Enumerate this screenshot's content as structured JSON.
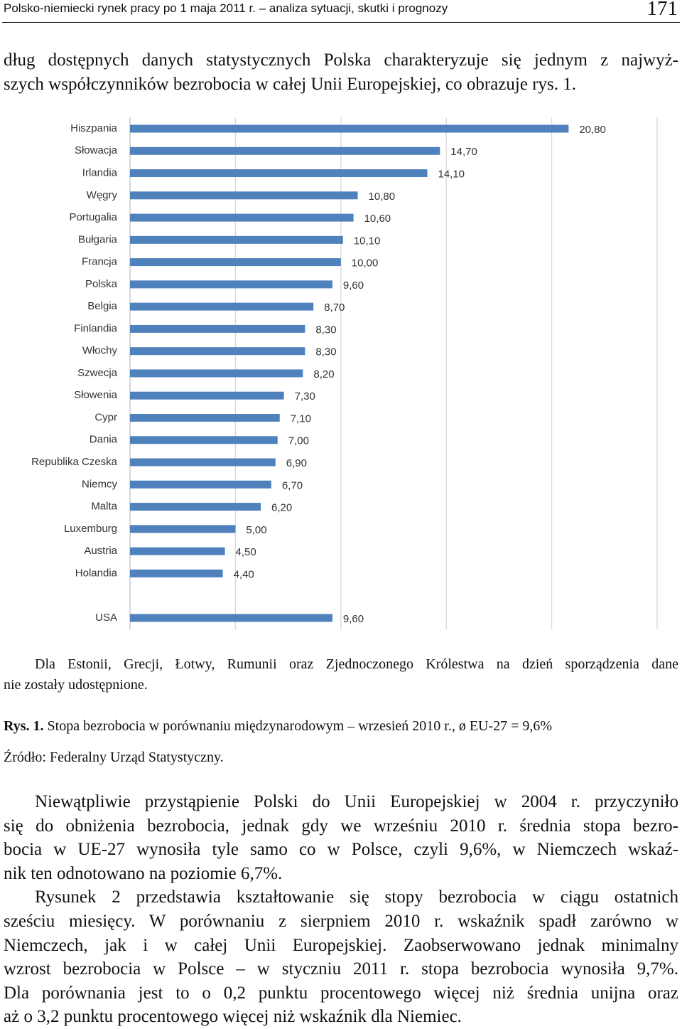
{
  "header": {
    "title": "Polsko-niemiecki rynek pracy po 1 maja 2011 r. – analiza sytuacji, skutki i prognozy",
    "page_number": "171"
  },
  "intro": {
    "lines": [
      "dług dostępnych danych statystycznych Polska charakteryzuje się jednym z najwyż-",
      "szych współczynników bezrobocia w całej Unii Europejskiej, co obrazuje rys. 1."
    ]
  },
  "chart_data": {
    "type": "barh",
    "categories": [
      "Hiszpania",
      "Słowacja",
      "Irlandia",
      "Węgry",
      "Portugalia",
      "Bułgaria",
      "Francja",
      "Polska",
      "Belgia",
      "Finlandia",
      "Włochy",
      "Szwecja",
      "Słowenia",
      "Cypr",
      "Dania",
      "Republika Czeska",
      "Niemcy",
      "Malta",
      "Luxemburg",
      "Austria",
      "Holandia",
      null,
      "USA"
    ],
    "values": [
      20.8,
      14.7,
      14.1,
      10.8,
      10.6,
      10.1,
      10.0,
      9.6,
      8.7,
      8.3,
      8.3,
      8.2,
      7.3,
      7.1,
      7.0,
      6.9,
      6.7,
      6.2,
      5.0,
      4.5,
      4.4,
      null,
      9.6
    ],
    "value_labels": [
      "20,80",
      "14,70",
      "14,10",
      "10,80",
      "10,60",
      "10,10",
      "10,00",
      "9,60",
      "8,70",
      "8,30",
      "8,30",
      "8,20",
      "7,30",
      "7,10",
      "7,00",
      "6,90",
      "6,70",
      "6,20",
      "5,00",
      "4,50",
      "4,40",
      null,
      "9,60"
    ],
    "color": "#4f81bd",
    "xlim": [
      0,
      25
    ],
    "xticks": [
      0,
      5,
      10,
      15,
      20,
      25
    ],
    "grid": true
  },
  "note": {
    "lines": [
      "Dla Estonii, Grecji, Łotwy, Rumunii oraz Zjednoczonego Królestwa na dzień sporządzenia dane",
      "nie zostały udostępnione."
    ]
  },
  "caption": {
    "label": "Rys. 1.",
    "text": "Stopa bezrobocia w porównaniu międzynarodowym – wrzesień 2010 r., ø EU-27 = 9,6%"
  },
  "source": "Źródło: Federalny Urząd Statystyczny.",
  "paragraphs": [
    {
      "lines": [
        "Niewątpliwie przystąpienie Polski do Unii Europejskiej w 2004 r. przyczyniło",
        "się do obniżenia bezrobocia, jednak gdy we wrześniu 2010 r. średnia stopa bezro-",
        "bocia w UE-27 wynosiła tyle samo co w Polsce, czyli 9,6%, w Niemczech wskaź-",
        "nik ten odnotowano na poziomie 6,7%."
      ]
    },
    {
      "lines": [
        "Rysunek 2 przedstawia kształtowanie się stopy bezrobocia w ciągu ostatnich",
        "sześciu miesięcy. W porównaniu z sierpniem 2010 r. wskaźnik spadł zarówno w",
        "Niemczech, jak i w całej Unii Europejskiej. Zaobserwowano jednak minimalny",
        "wzrost bezrobocia w Polsce – w styczniu 2011 r. stopa bezrobocia wynosiła 9,7%.",
        "Dla porównania jest to o 0,2 punktu procentowego więcej niż średnia unijna oraz",
        "aż o 3,2 punktu procentowego więcej niż wskaźnik dla Niemiec."
      ]
    }
  ]
}
